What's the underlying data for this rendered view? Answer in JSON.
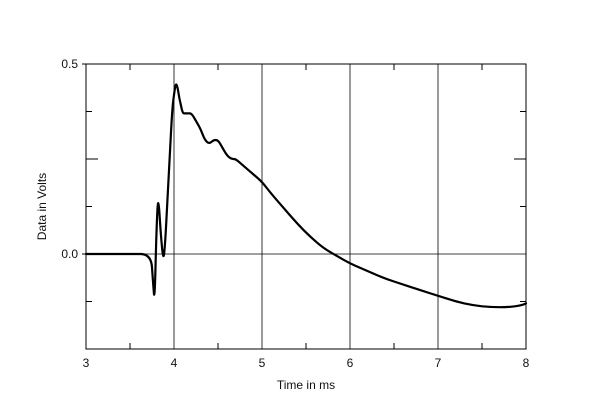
{
  "chart_data": {
    "type": "line",
    "title": "",
    "xlabel": "Time in ms",
    "ylabel": "Data in Volts",
    "xlim": [
      3,
      8
    ],
    "ylim": [
      -0.25,
      0.5
    ],
    "x_ticks": [
      3,
      4,
      5,
      6,
      7,
      8
    ],
    "x_tick_labels": [
      "3",
      "4",
      "5",
      "6",
      "7",
      "8"
    ],
    "y_ticks": [
      0.0,
      0.5
    ],
    "y_tick_labels": [
      "0.0",
      "0.5"
    ],
    "grid": true,
    "series": [
      {
        "x": [
          3.0,
          3.5,
          3.74,
          3.76,
          3.78,
          3.8,
          3.82,
          3.85,
          3.88,
          3.9,
          3.92,
          3.95,
          3.98,
          4.0,
          4.02,
          4.04,
          4.06,
          4.08,
          4.1,
          4.13,
          4.16,
          4.2,
          4.25,
          4.3,
          4.35,
          4.4,
          4.45,
          4.5,
          4.55,
          4.6,
          4.65,
          4.7,
          4.75,
          4.8,
          4.9,
          5.0,
          5.1,
          5.25,
          5.4,
          5.55,
          5.7,
          5.85,
          6.0,
          6.2,
          6.4,
          6.6,
          6.8,
          7.0,
          7.2,
          7.4,
          7.6,
          7.8,
          7.95,
          8.0
        ],
        "y": [
          0.0,
          0.0,
          0.0,
          -0.07,
          -0.13,
          0.06,
          0.16,
          0.05,
          -0.02,
          0.03,
          0.12,
          0.25,
          0.38,
          0.42,
          0.45,
          0.44,
          0.41,
          0.39,
          0.37,
          0.37,
          0.37,
          0.37,
          0.35,
          0.33,
          0.3,
          0.29,
          0.3,
          0.3,
          0.28,
          0.26,
          0.25,
          0.25,
          0.24,
          0.23,
          0.21,
          0.19,
          0.16,
          0.12,
          0.08,
          0.045,
          0.015,
          -0.005,
          -0.025,
          -0.045,
          -0.065,
          -0.08,
          -0.095,
          -0.11,
          -0.125,
          -0.135,
          -0.14,
          -0.14,
          -0.135,
          -0.13
        ]
      }
    ]
  }
}
